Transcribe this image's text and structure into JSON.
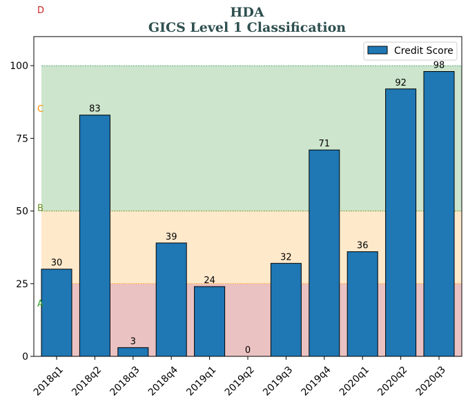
{
  "chart_data": {
    "type": "bar",
    "title": "HDA",
    "subtitle": "GICS Level 1 Classification",
    "xlabel": "",
    "ylabel": "",
    "categories": [
      "2018q1",
      "2018q2",
      "2018q3",
      "2018q4",
      "2019q1",
      "2019q2",
      "2019q3",
      "2019q4",
      "2020q1",
      "2020q2",
      "2020q3"
    ],
    "series": [
      {
        "name": "Credit Score",
        "values": [
          30,
          83,
          3,
          39,
          24,
          0,
          32,
          71,
          36,
          92,
          98
        ],
        "color": "#1f77b4"
      }
    ],
    "ylim": [
      0,
      110
    ],
    "yticks": [
      0,
      25,
      50,
      75,
      100
    ],
    "legend_position": "top-right",
    "grid": false,
    "bands": [
      {
        "letter": "A",
        "from": 0,
        "to": 25,
        "fill": "#cc6666",
        "letter_value": 18,
        "letter_color": "#2ca02c",
        "line_color": "#cc3333"
      },
      {
        "letter": "B",
        "from": 25,
        "to": 50,
        "fill": "#ffc87c",
        "letter_value": 51,
        "letter_color": "#6b8e23",
        "line_color": "#ff8c00"
      },
      {
        "letter": "C",
        "from": 50,
        "to": 100,
        "fill": "#7fbf7f",
        "letter_value": 85,
        "letter_color": "#ff8c00",
        "line_color": "#6b8e23"
      },
      {
        "letter": "D",
        "from": 100,
        "to": 110,
        "fill": "#ffffff",
        "letter_value": 119,
        "letter_color": "#cc2222",
        "line_color": "#2e8b57"
      }
    ]
  }
}
